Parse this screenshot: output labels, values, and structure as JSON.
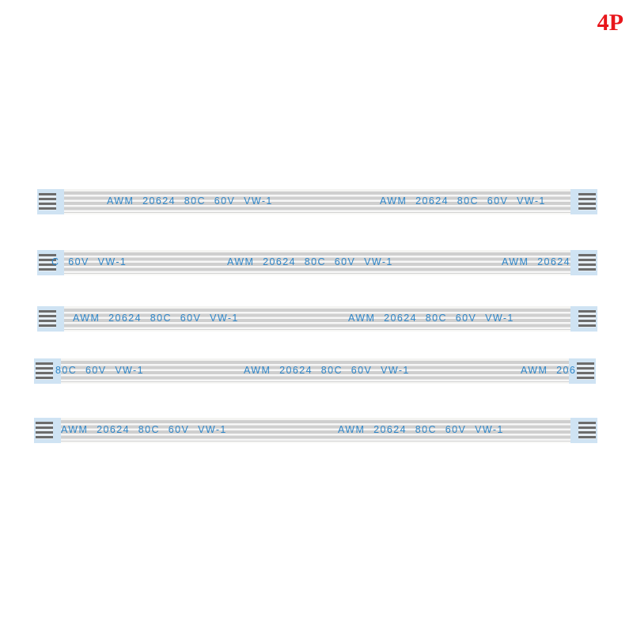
{
  "badge": "4P",
  "colors": {
    "badge": "#e8161b",
    "marking": "#2f86c8",
    "tab": "#cfe3f3"
  },
  "cables": [
    {
      "segments": [
        "AWM 20624 80C 60V VW-1",
        "AWM 20624 80C 60V VW-1"
      ]
    },
    {
      "segments": [
        "C 60V VW-1",
        "AWM 20624 80C 60V VW-1",
        "AWM 20624"
      ]
    },
    {
      "segments": [
        "AWM 20624 80C 60V VW-1",
        "AWM 20624 80C 60V VW-1"
      ]
    },
    {
      "segments": [
        "80C 60V VW-1",
        "AWM 20624 80C 60V VW-1",
        "AWM 206"
      ]
    },
    {
      "segments": [
        "AWM 20624 80C 60V VW-1",
        "AWM 20624 80C 60V VW-1"
      ]
    }
  ]
}
